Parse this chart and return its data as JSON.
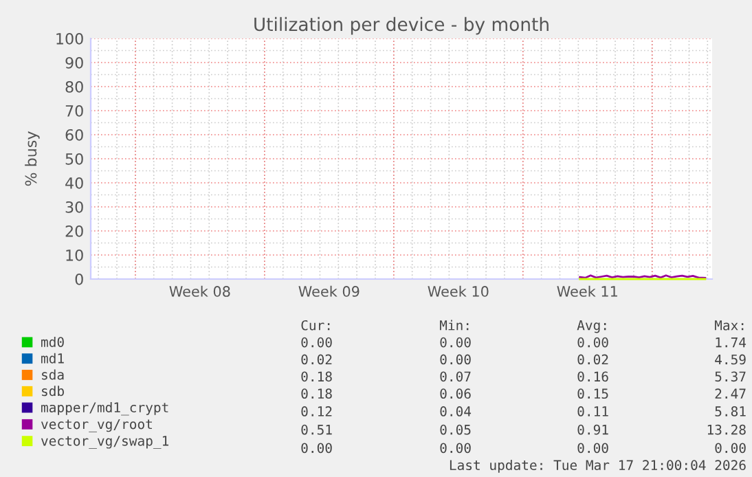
{
  "chart_data": {
    "type": "line",
    "title": "Utilization per device - by month",
    "ylabel": "% busy",
    "xlim": [
      "2026-02-12T14:00",
      "2026-03-18T06:00"
    ],
    "ylim": [
      0,
      100
    ],
    "yticks": [
      0,
      10,
      20,
      30,
      40,
      50,
      60,
      70,
      80,
      90,
      100
    ],
    "xticks": [
      {
        "value": "2026-02-15",
        "label": null
      },
      {
        "value": "2026-02-18T12:00",
        "label": "Week 08"
      },
      {
        "value": "2026-02-22",
        "label": null
      },
      {
        "value": "2026-02-25T12:00",
        "label": "Week 09"
      },
      {
        "value": "2026-03-01",
        "label": null
      },
      {
        "value": "2026-03-04T12:00",
        "label": "Week 10"
      },
      {
        "value": "2026-03-08",
        "label": null
      },
      {
        "value": "2026-03-11T12:00",
        "label": "Week 11"
      },
      {
        "value": "2026-03-15",
        "label": null
      }
    ],
    "grid": true,
    "legend": "bottom",
    "series": [
      {
        "name": "md0",
        "color": "#00cc00"
      },
      {
        "name": "md1",
        "color": "#0066b3"
      },
      {
        "name": "sda",
        "color": "#ff8000"
      },
      {
        "name": "sdb",
        "color": "#ffcc00"
      },
      {
        "name": "mapper/md1_crypt",
        "color": "#330099"
      },
      {
        "name": "vector_vg/root",
        "color": "#990099",
        "x": [
          "2026-03-11T02:00",
          "2026-03-11T09:00",
          "2026-03-11T16:00",
          "2026-03-11T23:00",
          "2026-03-12T06:00",
          "2026-03-12T13:00",
          "2026-03-12T20:00",
          "2026-03-13T03:00",
          "2026-03-13T10:00",
          "2026-03-13T17:00",
          "2026-03-14T00:00",
          "2026-03-14T07:00",
          "2026-03-14T14:00",
          "2026-03-14T21:00",
          "2026-03-15T04:00",
          "2026-03-15T11:00",
          "2026-03-15T18:00",
          "2026-03-16T01:00",
          "2026-03-16T08:00",
          "2026-03-16T15:00",
          "2026-03-16T22:00",
          "2026-03-17T05:00",
          "2026-03-17T12:00",
          "2026-03-17T21:00"
        ],
        "values": [
          0.8,
          0.5,
          1.5,
          0.6,
          1.0,
          1.4,
          0.7,
          1.2,
          0.8,
          1.0,
          1.0,
          0.7,
          1.2,
          0.8,
          1.4,
          0.6,
          1.5,
          0.7,
          1.1,
          1.4,
          0.9,
          1.3,
          0.6,
          0.5
        ]
      },
      {
        "name": "vector_vg/swap_1",
        "color": "#ccff00",
        "x": [
          "2026-03-11T02:00",
          "2026-03-13",
          "2026-03-15",
          "2026-03-17T21:00"
        ],
        "values": [
          0,
          0,
          0,
          0
        ]
      }
    ],
    "annotations": [
      "Cur:",
      "Min:",
      "Avg:",
      "Max:",
      "0.00",
      "0.00",
      "0.00",
      "1.74",
      "0.02",
      "0.00",
      "0.02",
      "4.59",
      "0.18",
      "0.07",
      "0.16",
      "5.37",
      "0.18",
      "0.06",
      "0.15",
      "2.47",
      "0.12",
      "0.04",
      "0.11",
      "5.81",
      "0.51",
      "0.05",
      "0.91",
      "13.28",
      "0.00",
      "0.00",
      "0.00",
      "0.00",
      "Last update: Tue Mar 17 21:00:04 2026"
    ]
  }
}
